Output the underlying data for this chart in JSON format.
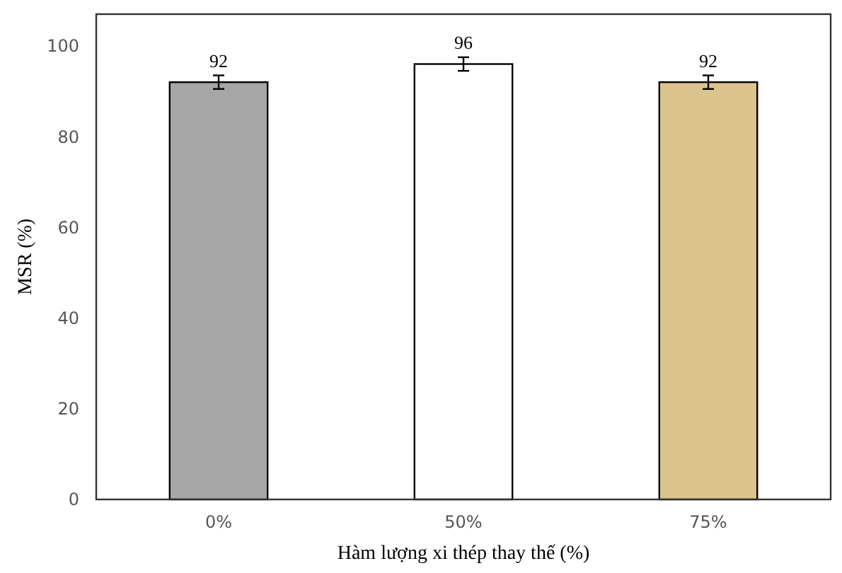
{
  "chart_data": {
    "type": "bar",
    "xlabel": "Hàm lượng xi thép thay thế  (%)",
    "ylabel": "MSR (%)",
    "categories": [
      "0%",
      "50%",
      "75%"
    ],
    "values": [
      92,
      96,
      92
    ],
    "colors": [
      "#a6a6a6",
      "#ffffff",
      "#dcc48e"
    ],
    "errors": [
      1.5,
      1.5,
      1.5
    ],
    "ylim": [
      0,
      107
    ],
    "yticks": [
      0,
      20,
      40,
      60,
      80,
      100
    ],
    "data_labels": true,
    "grid": false
  }
}
